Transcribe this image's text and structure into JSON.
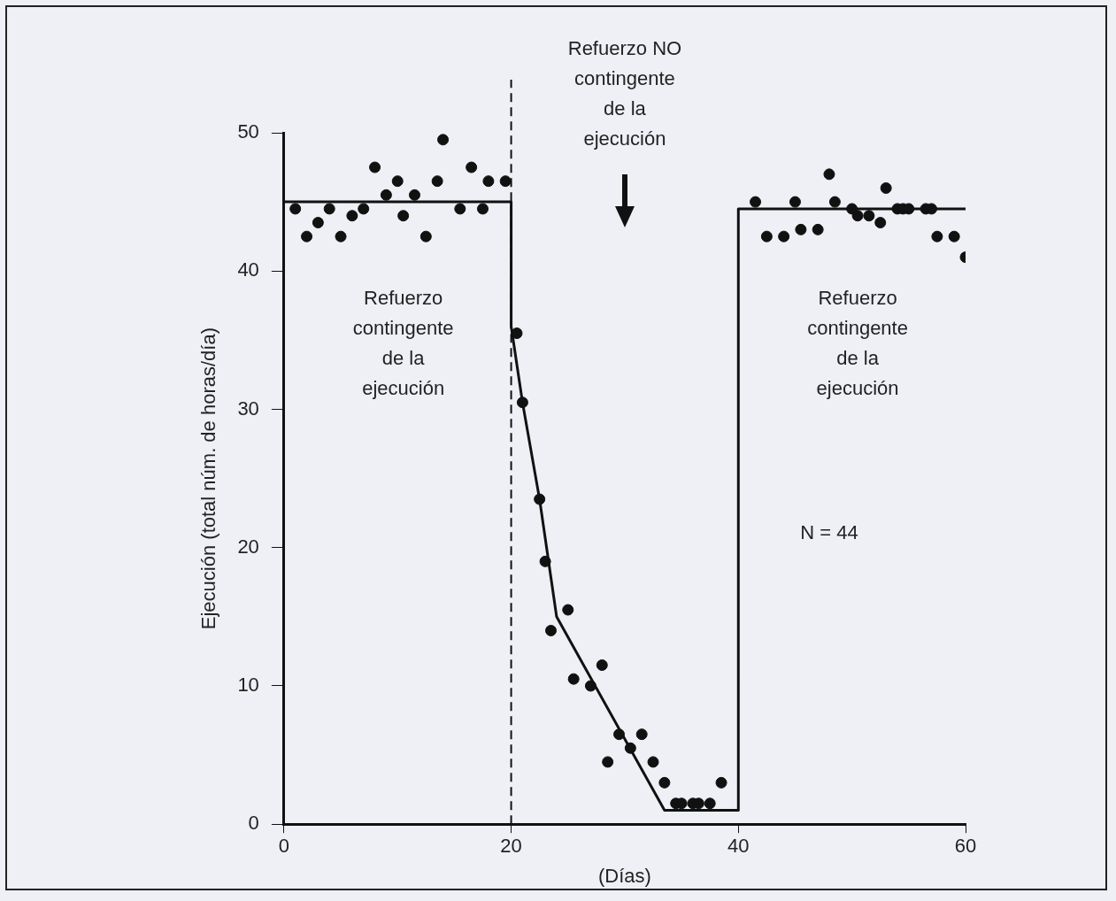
{
  "chart_data": {
    "type": "scatter",
    "xlabel": "(Días)",
    "ylabel": "Ejecución (total núm. de horas/día)",
    "xlim": [
      0,
      60
    ],
    "xticks": [
      0,
      20,
      40,
      60
    ],
    "ylim": [
      0,
      50
    ],
    "yticks": [
      0,
      10,
      20,
      30,
      40,
      50
    ],
    "grid": false,
    "legend": false,
    "series": [
      {
        "marker": "circle",
        "color": "#111111",
        "x": [
          1,
          2,
          3,
          4,
          5,
          6,
          7,
          8,
          9,
          10,
          10.5,
          11.5,
          12.5,
          13.5,
          14,
          15.5,
          16.5,
          17.5,
          18,
          19.5,
          20.5,
          21,
          22.5,
          23,
          23.5,
          25,
          25.5,
          27,
          28,
          28.5,
          29.5,
          30.5,
          31.5,
          32.5,
          33.5,
          34.5,
          35,
          36,
          36.5,
          37.5,
          38.5,
          41.5,
          42.5,
          44,
          45,
          45.5,
          47,
          48,
          48.5,
          50,
          50.5,
          51.5,
          52.5,
          53,
          54,
          54.5,
          55,
          56.5,
          57,
          57.5,
          59,
          60
        ],
        "values": [
          44.5,
          42.5,
          43.5,
          44.5,
          42.5,
          44,
          44.5,
          47.5,
          45.5,
          46.5,
          44,
          45.5,
          42.5,
          46.5,
          49.5,
          44.5,
          47.5,
          44.5,
          46.5,
          46.5,
          35.5,
          30.5,
          23.5,
          19,
          14,
          15.5,
          10.5,
          10,
          11.5,
          4.5,
          6.5,
          5.5,
          6.5,
          4.5,
          3,
          1.5,
          1.5,
          1.5,
          1.5,
          1.5,
          3,
          45,
          42.5,
          42.5,
          45,
          43,
          43,
          47,
          45,
          44.5,
          44,
          44,
          43.5,
          46,
          44.5,
          44.5,
          44.5,
          44.5,
          44.5,
          42.5,
          42.5,
          41
        ]
      },
      {
        "type": "line",
        "marker": "none",
        "color": "#111111",
        "line_style": "solid",
        "x": [
          0,
          20,
          20,
          21,
          22.5,
          24,
          33.5,
          40,
          40,
          60
        ],
        "values": [
          45,
          45,
          36,
          30.5,
          23.5,
          15,
          1,
          1,
          44.5,
          44.5
        ]
      }
    ],
    "ref_lines": [
      {
        "axis": "x",
        "value": 20,
        "line_style": "dashed",
        "color": "#111111"
      }
    ],
    "annotations": [
      "Refuerzo\ncontingente\nde la\nejecución",
      "Refuerzo NO\ncontingente\nde la\nejecución",
      "Refuerzo\ncontingente\nde la\nejecución",
      "N = 44"
    ]
  }
}
